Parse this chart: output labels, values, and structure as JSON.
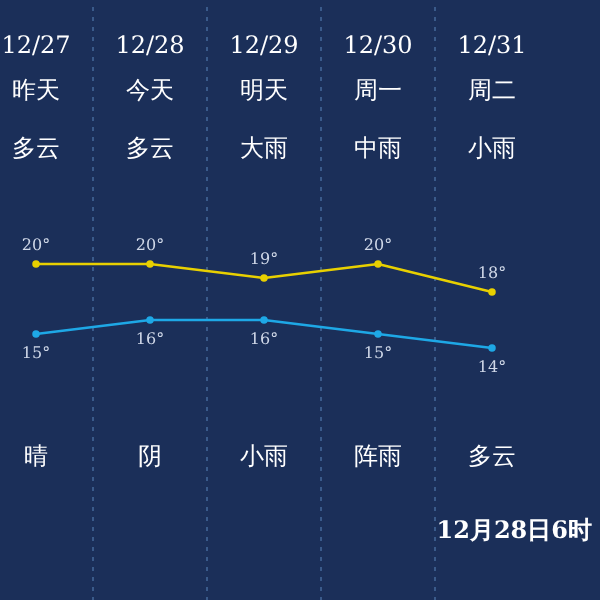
{
  "chart_data": {
    "type": "line",
    "categories": [
      "12/27",
      "12/28",
      "12/29",
      "12/30",
      "12/31"
    ],
    "series": [
      {
        "color": "#e8d000",
        "values": [
          20,
          20,
          19,
          20,
          18
        ],
        "value_labels": [
          "20°",
          "20°",
          "19°",
          "20°",
          "18°"
        ]
      },
      {
        "color": "#1ea8e6",
        "values": [
          15,
          16,
          16,
          15,
          14
        ],
        "value_labels": [
          "15°",
          "16°",
          "16°",
          "15°",
          "14°"
        ]
      }
    ],
    "marker": "circle",
    "grid": "x",
    "annotations": [
      "昨天",
      "多云",
      "晴",
      "今天",
      "多云",
      "阴",
      "明天",
      "大雨",
      "小雨",
      "周一",
      "中雨",
      "阵雨",
      "周二",
      "小雨",
      "多云",
      "12月28日6时"
    ]
  }
}
